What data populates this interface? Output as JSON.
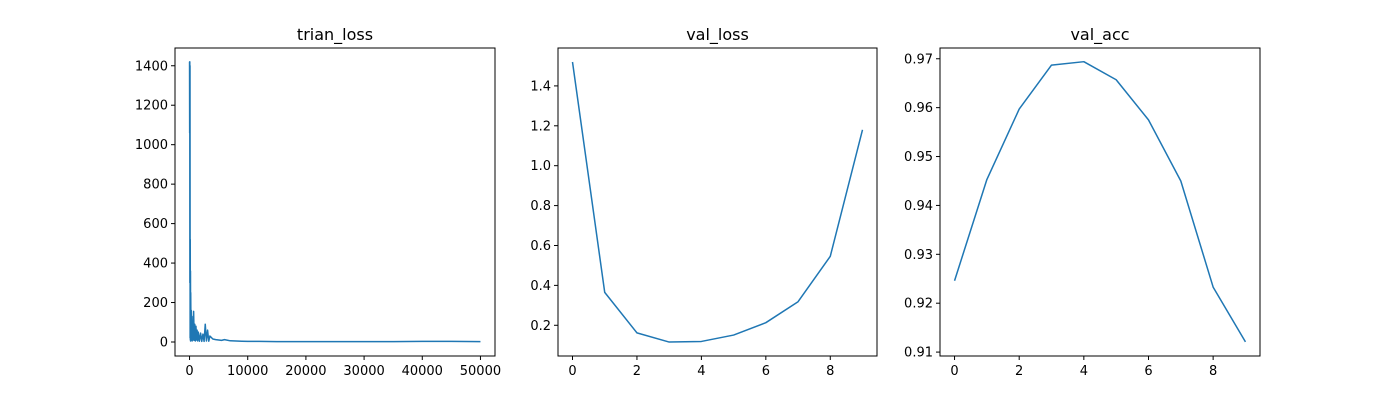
{
  "chart_data": [
    {
      "type": "line",
      "title": "trian_loss",
      "xlabel": "",
      "ylabel": "",
      "xlim": [
        -2500,
        52500
      ],
      "ylim": [
        -71,
        1490
      ],
      "xticks": [
        0,
        10000,
        20000,
        30000,
        40000,
        50000
      ],
      "yticks": [
        0,
        200,
        400,
        600,
        800,
        1000,
        1200,
        1400
      ],
      "grid": false,
      "color": "#1f77b4",
      "series": [
        {
          "x": [
            0,
            20,
            40,
            60,
            80,
            100,
            120,
            140,
            160,
            180,
            200,
            250,
            300,
            350,
            400,
            450,
            500,
            600,
            700,
            800,
            900,
            1000,
            1100,
            1200,
            1300,
            1400,
            1500,
            1700,
            1900,
            2100,
            2300,
            2500,
            2700,
            2900,
            3100,
            3300,
            3500,
            4000,
            4500,
            5000,
            5500,
            6000,
            7000,
            8000,
            9000,
            10000,
            12000,
            15000,
            20000,
            25000,
            30000,
            35000,
            40000,
            45000,
            50000
          ],
          "y": [
            1420,
            1060,
            1420,
            300,
            1400,
            20,
            520,
            10,
            360,
            5,
            250,
            30,
            160,
            10,
            130,
            5,
            100,
            10,
            155,
            8,
            90,
            5,
            80,
            10,
            60,
            5,
            50,
            4,
            45,
            3,
            40,
            3,
            90,
            5,
            60,
            4,
            30,
            15,
            12,
            10,
            8,
            12,
            6,
            5,
            4,
            3,
            3,
            2,
            2,
            2,
            2,
            2,
            3,
            3,
            2
          ]
        }
      ]
    },
    {
      "type": "line",
      "title": "val_loss",
      "xlabel": "",
      "ylabel": "",
      "xlim": [
        -0.45,
        9.45
      ],
      "ylim": [
        0.046,
        1.59
      ],
      "xticks": [
        0,
        2,
        4,
        6,
        8
      ],
      "yticks": [
        0.2,
        0.4,
        0.6,
        0.8,
        1.0,
        1.2,
        1.4
      ],
      "grid": false,
      "color": "#1f77b4",
      "series": [
        {
          "x": [
            0,
            1,
            2,
            3,
            4,
            5,
            6,
            7,
            8,
            9
          ],
          "y": [
            1.52,
            0.365,
            0.162,
            0.116,
            0.119,
            0.151,
            0.213,
            0.318,
            0.546,
            1.18
          ]
        }
      ]
    },
    {
      "type": "line",
      "title": "val_acc",
      "xlabel": "",
      "ylabel": "",
      "xlim": [
        -0.45,
        9.45
      ],
      "ylim": [
        0.9092,
        0.9722
      ],
      "xticks": [
        0,
        2,
        4,
        6,
        8
      ],
      "yticks": [
        0.91,
        0.92,
        0.93,
        0.94,
        0.95,
        0.96,
        0.97
      ],
      "grid": false,
      "color": "#1f77b4",
      "series": [
        {
          "x": [
            0,
            1,
            2,
            3,
            4,
            5,
            6,
            7,
            8,
            9
          ],
          "y": [
            0.9246,
            0.9453,
            0.9597,
            0.9687,
            0.9694,
            0.9657,
            0.9575,
            0.945,
            0.9233,
            0.9121
          ]
        }
      ]
    }
  ]
}
